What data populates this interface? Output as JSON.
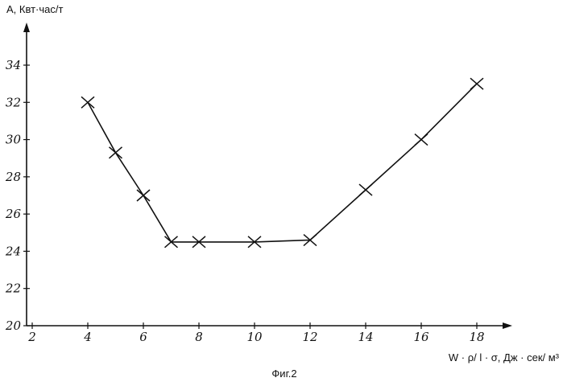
{
  "chart_data": {
    "type": "line",
    "title": "",
    "ylabel": "А, Квт·час/т",
    "xlabel": "W · ρ/ l · σ, Дж · сек/ м³",
    "caption": "Фиг.2",
    "xlim": [
      2,
      18
    ],
    "ylim": [
      20,
      34
    ],
    "x_ticks": [
      "2",
      "4",
      "6",
      "8",
      "10",
      "12",
      "14",
      "16",
      "18"
    ],
    "y_ticks": [
      "20",
      "22",
      "24",
      "26",
      "28",
      "30",
      "32",
      "34"
    ],
    "grid": false,
    "marker": "cross",
    "series": [
      {
        "x": [
          4,
          5,
          6,
          7,
          8,
          10,
          12,
          14,
          16,
          18
        ],
        "y": [
          32,
          29.3,
          27,
          24.5,
          24.5,
          24.5,
          24.6,
          27.3,
          30,
          33
        ]
      }
    ]
  }
}
